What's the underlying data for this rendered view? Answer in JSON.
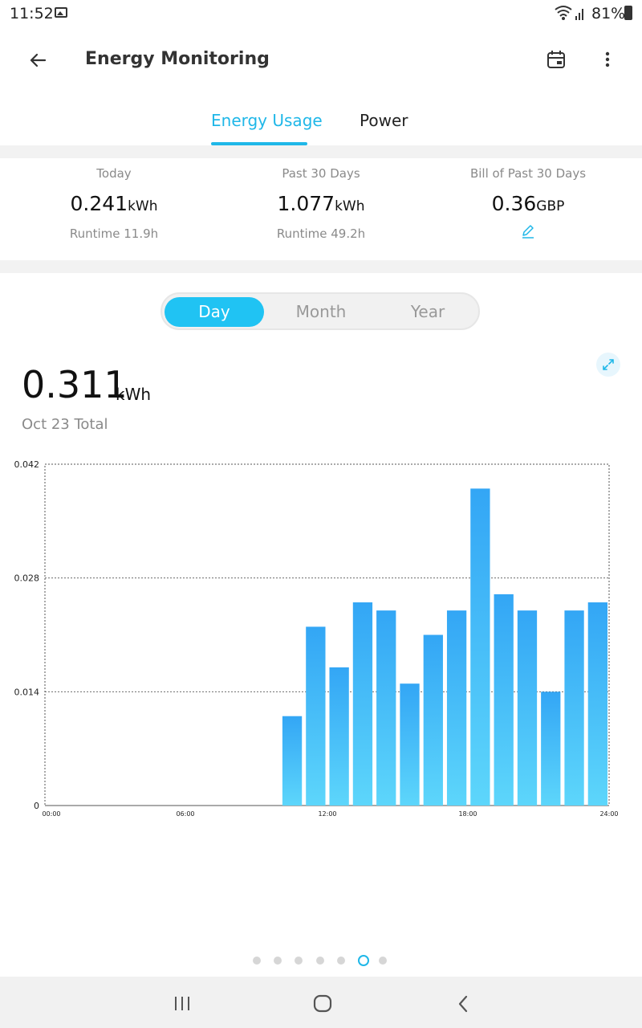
{
  "status_bar": {
    "time": "11:52",
    "battery": "81%"
  },
  "app_bar": {
    "title": "Energy Monitoring"
  },
  "tabs": [
    {
      "label": "Energy Usage",
      "active": true
    },
    {
      "label": "Power",
      "active": false
    }
  ],
  "summary": [
    {
      "label": "Today",
      "value": "0.241",
      "unit": "kWh",
      "sub": "Runtime 11.9h"
    },
    {
      "label": "Past 30 Days",
      "value": "1.077",
      "unit": "kWh",
      "sub": "Runtime 49.2h"
    },
    {
      "label": "Bill of Past 30 Days",
      "value": "0.36",
      "unit": "GBP",
      "sub_icon": "pencil-icon"
    }
  ],
  "period_toggle": {
    "options": [
      "Day",
      "Month",
      "Year"
    ],
    "selected": "Day"
  },
  "total": {
    "value": "0.311",
    "unit": "kWh",
    "label": "Oct 23 Total"
  },
  "chart_data": {
    "type": "bar",
    "ylim": [
      0,
      0.042
    ],
    "y_ticks": [
      "0",
      "0.014",
      "0.028",
      "0.042"
    ],
    "x_ticks": [
      "00:00",
      "06:00",
      "12:00",
      "18:00",
      "24:00"
    ],
    "x": [
      0,
      1,
      2,
      3,
      4,
      5,
      6,
      7,
      8,
      9,
      10,
      11,
      12,
      13,
      14,
      15,
      16,
      17,
      18,
      19,
      20,
      21,
      22,
      23
    ],
    "values": [
      0,
      0,
      0,
      0,
      0,
      0,
      0,
      0,
      0,
      0,
      0.011,
      0.022,
      0.017,
      0.025,
      0.024,
      0.015,
      0.021,
      0.024,
      0.039,
      0.026,
      0.024,
      0.014,
      0.024,
      0.025
    ],
    "grid": true,
    "colors": {
      "bar_top": "#33a6f5",
      "bar_bottom": "#5dd6fb"
    }
  },
  "pager": {
    "count": 7,
    "active_index": 5
  },
  "colors": {
    "accent": "#1fb7e8"
  }
}
